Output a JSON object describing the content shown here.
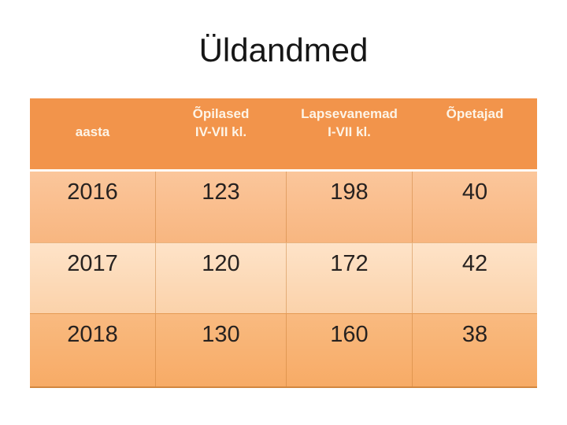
{
  "slide": {
    "title": "Üldandmed"
  },
  "table": {
    "columns": [
      {
        "line1": "",
        "line2": "aasta"
      },
      {
        "line1": "Õpilased",
        "line2": "IV-VII kl."
      },
      {
        "line1": "Lapsevanemad",
        "line2": "I-VII kl."
      },
      {
        "line1": "Õpetajad",
        "line2": ""
      }
    ],
    "rows": [
      {
        "year": "2016",
        "opilased": "123",
        "lapsevanemad": "198",
        "opetajad": "40"
      },
      {
        "year": "2017",
        "opilased": "120",
        "lapsevanemad": "172",
        "opetajad": "42"
      },
      {
        "year": "2018",
        "opilased": "130",
        "lapsevanemad": "160",
        "opetajad": "38"
      }
    ]
  },
  "chart_data": {
    "type": "table",
    "title": "Üldandmed",
    "categories": [
      "2016",
      "2017",
      "2018"
    ],
    "series": [
      {
        "name": "Õpilased IV-VII kl.",
        "values": [
          123,
          120,
          130
        ]
      },
      {
        "name": "Lapsevanemad I-VII kl.",
        "values": [
          198,
          172,
          160
        ]
      },
      {
        "name": "Õpetajad",
        "values": [
          40,
          42,
          38
        ]
      }
    ]
  },
  "colors": {
    "header_fill": "#F2944B",
    "band_row_fill": "#F9BA83",
    "light_row_fill": "#FDDCBA",
    "header_text": "#FDF4E7",
    "body_text": "#272220",
    "title_text": "#161616",
    "table_bottom_border": "#D2873F"
  }
}
